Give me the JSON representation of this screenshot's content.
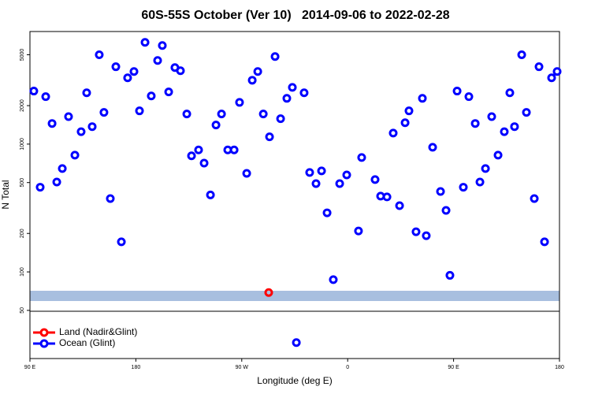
{
  "chart_data": {
    "type": "scatter",
    "title": "60S-55S October (Ver 10)   2014-09-06 to 2022-02-28",
    "x_label": "Longitude (deg E)",
    "y_label": "N Total",
    "ylog": true,
    "legend": "bottom-left",
    "xlim": [
      90,
      540
    ],
    "xticks": [
      {
        "value": 90,
        "label": "90 E"
      },
      180,
      {
        "value": 270,
        "label": "90 W"
      },
      {
        "value": 360,
        "label": "0"
      },
      {
        "value": 450,
        "label": "90 E"
      },
      {
        "value": 540,
        "label": "180"
      }
    ],
    "ylim": [
      21,
      7600
    ],
    "yticks": [
      50,
      100,
      200,
      500,
      1000,
      2000,
      5000
    ],
    "series": [
      {
        "name": "Land (Nadir&Glint)",
        "color": "#ff0000",
        "x": [
          292.9
        ],
        "values": [
          69
        ]
      },
      {
        "name": "Ocean (Glint)",
        "color": "#0000ff",
        "x": [
          93.3,
          98.7,
          103.4,
          108.8,
          112.8,
          117.5,
          122.8,
          128.2,
          133.5,
          138.2,
          142.9,
          148.9,
          152.9,
          158.3,
          163.0,
          167.7,
          173.0,
          178.4,
          183.1,
          187.8,
          193.1,
          198.5,
          202.5,
          207.9,
          213.2,
          217.9,
          223.3,
          227.3,
          233.3,
          238.0,
          243.4,
          248.1,
          252.8,
          258.1,
          263.5,
          268.1,
          274.2,
          278.9,
          283.6,
          288.3,
          293.6,
          298.3,
          303.0,
          308.3,
          313.0,
          316.4,
          323.0,
          327.7,
          333.1,
          337.8,
          342.5,
          347.8,
          353.2,
          359.2,
          369.2,
          371.9,
          383.3,
          388.0,
          393.4,
          398.7,
          404.1,
          408.8,
          412.1,
          418.1,
          423.5,
          426.8,
          432.2,
          438.9,
          443.6,
          446.9,
          453.0,
          458.3,
          463.0,
          468.4,
          472.4,
          477.1,
          482.4,
          487.8,
          493.1,
          497.8,
          501.8,
          507.9,
          511.9,
          518.6,
          522.6,
          527.3,
          533.3,
          538.0
        ],
        "values": [
          2600,
          460,
          2350,
          1450,
          505,
          644,
          1640,
          820,
          1250,
          2520,
          1370,
          5000,
          1770,
          375,
          4030,
          172,
          3300,
          3700,
          1820,
          6250,
          2380,
          4510,
          5910,
          2560,
          3970,
          3750,
          1720,
          810,
          900,
          710,
          400,
          1410,
          1720,
          900,
          900,
          2120,
          590,
          3160,
          3700,
          1720,
          1140,
          4840,
          1580,
          2280,
          2780,
          28,
          2520,
          600,
          491,
          617,
          290,
          87,
          491,
          574,
          209,
          785,
          528,
          392,
          386,
          1220,
          330,
          1470,
          1820,
          206,
          2280,
          192,
          945,
          426,
          303,
          94,
          2600,
          460,
          2350,
          1450,
          505,
          644,
          1640,
          820,
          1250,
          2520,
          1370,
          5000,
          1770,
          375,
          4030,
          172,
          3300,
          3700
        ]
      }
    ]
  }
}
